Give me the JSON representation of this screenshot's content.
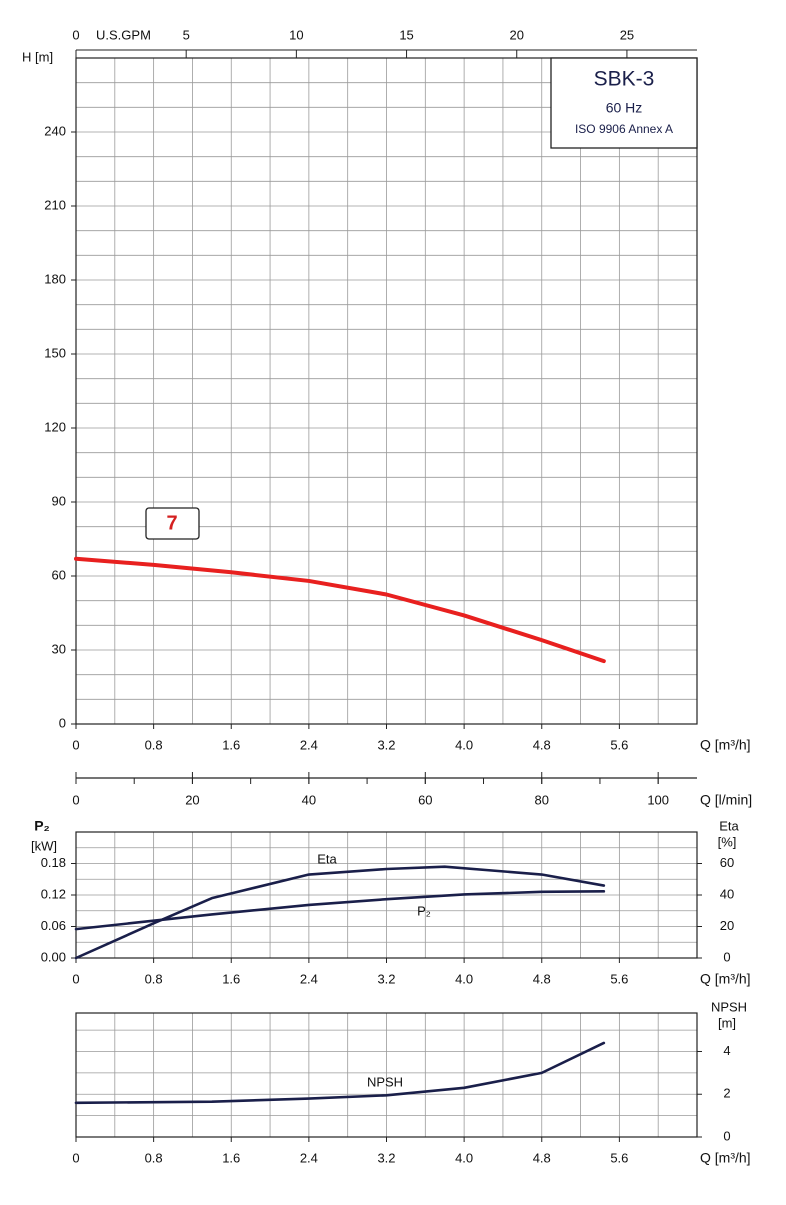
{
  "chart_data": [
    {
      "type": "line",
      "ylabel": "H [m]",
      "xlabel": "Q [m³/h]",
      "x2label": "U.S.GPM",
      "xlim": [
        0,
        6.4
      ],
      "xticks": [
        0,
        0.8,
        1.6,
        2.4,
        3.2,
        {
          "value": 4,
          "label": "4.0"
        },
        4.8,
        5.6
      ],
      "x2lim": [
        0,
        28.18
      ],
      "x2ticks": [
        0,
        5,
        10,
        15,
        20,
        25
      ],
      "ylim": [
        0,
        270
      ],
      "yticks": [
        0,
        30,
        60,
        90,
        120,
        150,
        180,
        210,
        240
      ],
      "grid": true,
      "annotation": "7",
      "info": [
        "SBK-3",
        "60 Hz",
        "ISO 9906 Annex A"
      ],
      "series": [
        {
          "color": "#e8201f",
          "x": [
            0,
            0.8,
            1.6,
            2.4,
            3.2,
            4.0,
            4.8,
            5.44
          ],
          "values": [
            67,
            64.5,
            61.5,
            58,
            52.5,
            44,
            34,
            25.5
          ]
        }
      ]
    },
    {
      "type": "axis",
      "xlabel": "Q [l/min]",
      "xlim": [
        0,
        106.67
      ],
      "xticks": [
        0,
        20,
        40,
        60,
        80,
        100
      ]
    },
    {
      "type": "line",
      "ylabel": "P₂",
      "yunit": "[kW]",
      "y2label": "Eta",
      "y2unit": "[%]",
      "xlabel": "Q [m³/h]",
      "xlim": [
        0,
        6.4
      ],
      "xticks": [
        0,
        0.8,
        1.6,
        2.4,
        3.2,
        {
          "value": 4,
          "label": "4.0"
        },
        4.8,
        5.6
      ],
      "ylim": [
        0,
        0.24
      ],
      "yticks": [
        {
          "value": 0,
          "label": "0.00"
        },
        {
          "value": 0.06,
          "label": "0.06"
        },
        {
          "value": 0.12,
          "label": "0.12"
        },
        {
          "value": 0.18,
          "label": "0.18"
        }
      ],
      "y2lim": [
        0,
        80
      ],
      "y2ticks": [
        0,
        20,
        40,
        60
      ],
      "grid": true,
      "series": [
        {
          "name": "Eta",
          "axis": "y2",
          "color": "#1a1f4a",
          "x": [
            0,
            0.8,
            1.4,
            2.4,
            3.2,
            3.8,
            4.8,
            5.44
          ],
          "values": [
            0,
            22,
            38,
            53,
            56.5,
            58,
            53,
            46
          ]
        },
        {
          "name": "P₂",
          "color": "#1a1f4a",
          "x": [
            0,
            0.8,
            1.4,
            2.4,
            3.2,
            4.0,
            4.8,
            5.44
          ],
          "values": [
            0.055,
            0.071,
            0.083,
            0.101,
            0.112,
            0.121,
            0.126,
            0.127
          ]
        }
      ]
    },
    {
      "type": "line",
      "y2label": "NPSH",
      "y2unit": "[m]",
      "xlabel": "Q [m³/h]",
      "xlim": [
        0,
        6.4
      ],
      "xticks": [
        0,
        0.8,
        1.6,
        2.4,
        3.2,
        {
          "value": 4,
          "label": "4.0"
        },
        4.8,
        5.6
      ],
      "y2lim": [
        0,
        5.8
      ],
      "y2ticks": [
        0,
        2,
        4
      ],
      "grid": true,
      "series": [
        {
          "name": "NPSH",
          "axis": "y2",
          "color": "#1a1f4a",
          "x": [
            0,
            1.4,
            2.4,
            3.2,
            4.0,
            4.8,
            5.44
          ],
          "values": [
            1.6,
            1.65,
            1.8,
            1.95,
            2.3,
            3.0,
            4.4
          ]
        }
      ]
    }
  ]
}
